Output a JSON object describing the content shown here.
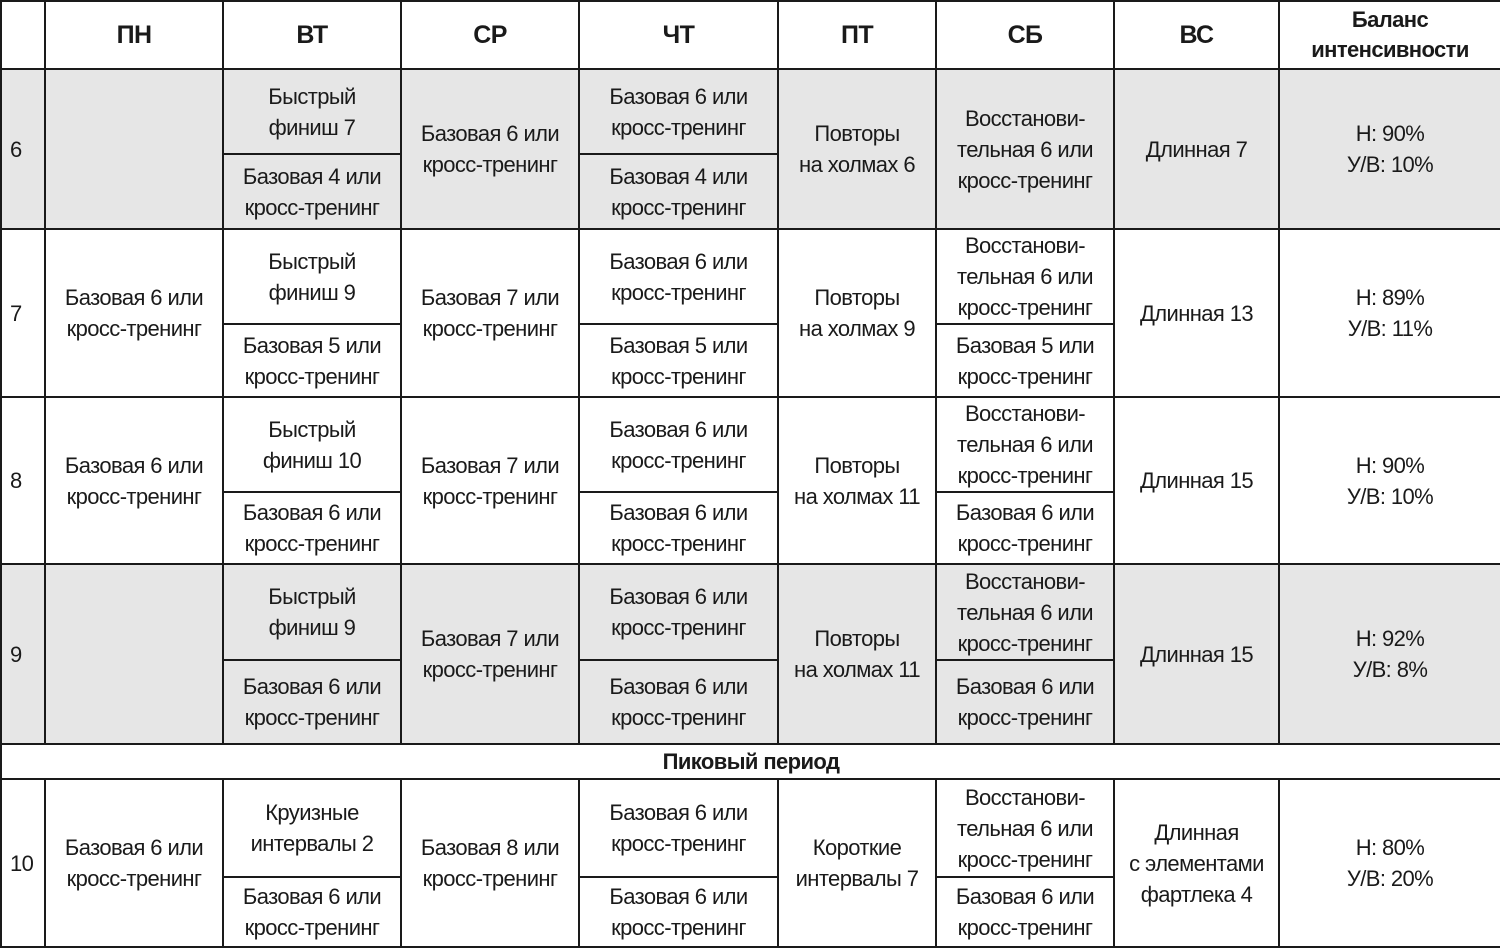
{
  "header": {
    "week": "",
    "days": [
      "ПН",
      "ВТ",
      "СР",
      "ЧТ",
      "ПТ",
      "СБ",
      "ВС"
    ],
    "balance": "Баланс\nинтенсивности"
  },
  "rows": [
    {
      "week": "6",
      "gray": true,
      "mon": "",
      "tue": {
        "top": "Быстрый\nфиниш 7",
        "bottom": "Базовая 4 или\nкросс-тренинг"
      },
      "wed": "Базовая 6 или\nкросс-тренинг",
      "thu": {
        "top": "Базовая 6 или\nкросс-тренинг",
        "bottom": "Базовая 4 или\nкросс-тренинг"
      },
      "fri": "Повторы\nна холмах 6",
      "sat": "Восстанови-\nтельная 6 или\nкросс-тренинг",
      "sun": "Длинная 7",
      "balance": "Н: 90%\nУ/В: 10%"
    },
    {
      "week": "7",
      "gray": false,
      "mon": "Базовая 6 или\nкросс-тренинг",
      "tue": {
        "top": "Быстрый\nфиниш 9",
        "bottom": "Базовая 5 или\nкросс-тренинг"
      },
      "wed": "Базовая 7 или\nкросс-тренинг",
      "thu": {
        "top": "Базовая 6 или\nкросс-тренинг",
        "bottom": "Базовая 5 или\nкросс-тренинг"
      },
      "fri": "Повторы\nна холмах 9",
      "sat": {
        "top": "Восстанови-\nтельная 6 или\nкросс-тренинг",
        "bottom": "Базовая 5 или\nкросс-тренинг"
      },
      "sun": "Длинная 13",
      "balance": "Н: 89%\nУ/В: 11%"
    },
    {
      "week": "8",
      "gray": false,
      "mon": "Базовая 6 или\nкросс-тренинг",
      "tue": {
        "top": "Быстрый\nфиниш 10",
        "bottom": "Базовая 6 или\nкросс-тренинг"
      },
      "wed": "Базовая 7 или\nкросс-тренинг",
      "thu": {
        "top": "Базовая 6 или\nкросс-тренинг",
        "bottom": "Базовая 6 или\nкросс-тренинг"
      },
      "fri": "Повторы\nна холмах 11",
      "sat": {
        "top": "Восстанови-\nтельная 6 или\nкросс-тренинг",
        "bottom": "Базовая 6 или\nкросс-тренинг"
      },
      "sun": "Длинная 15",
      "balance": "Н: 90%\nУ/В: 10%"
    },
    {
      "week": "9",
      "gray": true,
      "mon": "",
      "tue": {
        "top": "Быстрый\nфиниш 9",
        "bottom": "Базовая 6 или\nкросс-тренинг"
      },
      "wed": "Базовая 7 или\nкросс-тренинг",
      "thu": {
        "top": "Базовая 6 или\nкросс-тренинг",
        "bottom": "Базовая 6 или\nкросс-тренинг"
      },
      "fri": "Повторы\nна холмах 11",
      "sat": {
        "top": "Восстанови-\nтельная 6 или\nкросс-тренинг",
        "bottom": "Базовая 6 или\nкросс-тренинг"
      },
      "sun": "Длинная 15",
      "balance": "Н: 92%\nУ/В: 8%"
    },
    {
      "section": "Пиковый период"
    },
    {
      "week": "10",
      "gray": false,
      "mon": "Базовая 6 или\nкросс-тренинг",
      "tue": {
        "top": "Круизные\nинтервалы 2",
        "bottom": "Базовая 6 или\nкросс-тренинг"
      },
      "wed": "Базовая 8 или\nкросс-тренинг",
      "thu": {
        "top": "Базовая 6 или\nкросс-тренинг",
        "bottom": "Базовая 6 или\nкросс-тренинг"
      },
      "fri": "Короткие\nинтервалы 7",
      "sat": {
        "top": "Восстанови-\nтельная 6 или\nкросс-тренинг",
        "bottom": "Базовая 6 или\nкросс-тренинг"
      },
      "sun": "Длинная\nс элементами\nфартлека 4",
      "balance": "Н: 80%\nУ/В: 20%"
    }
  ]
}
